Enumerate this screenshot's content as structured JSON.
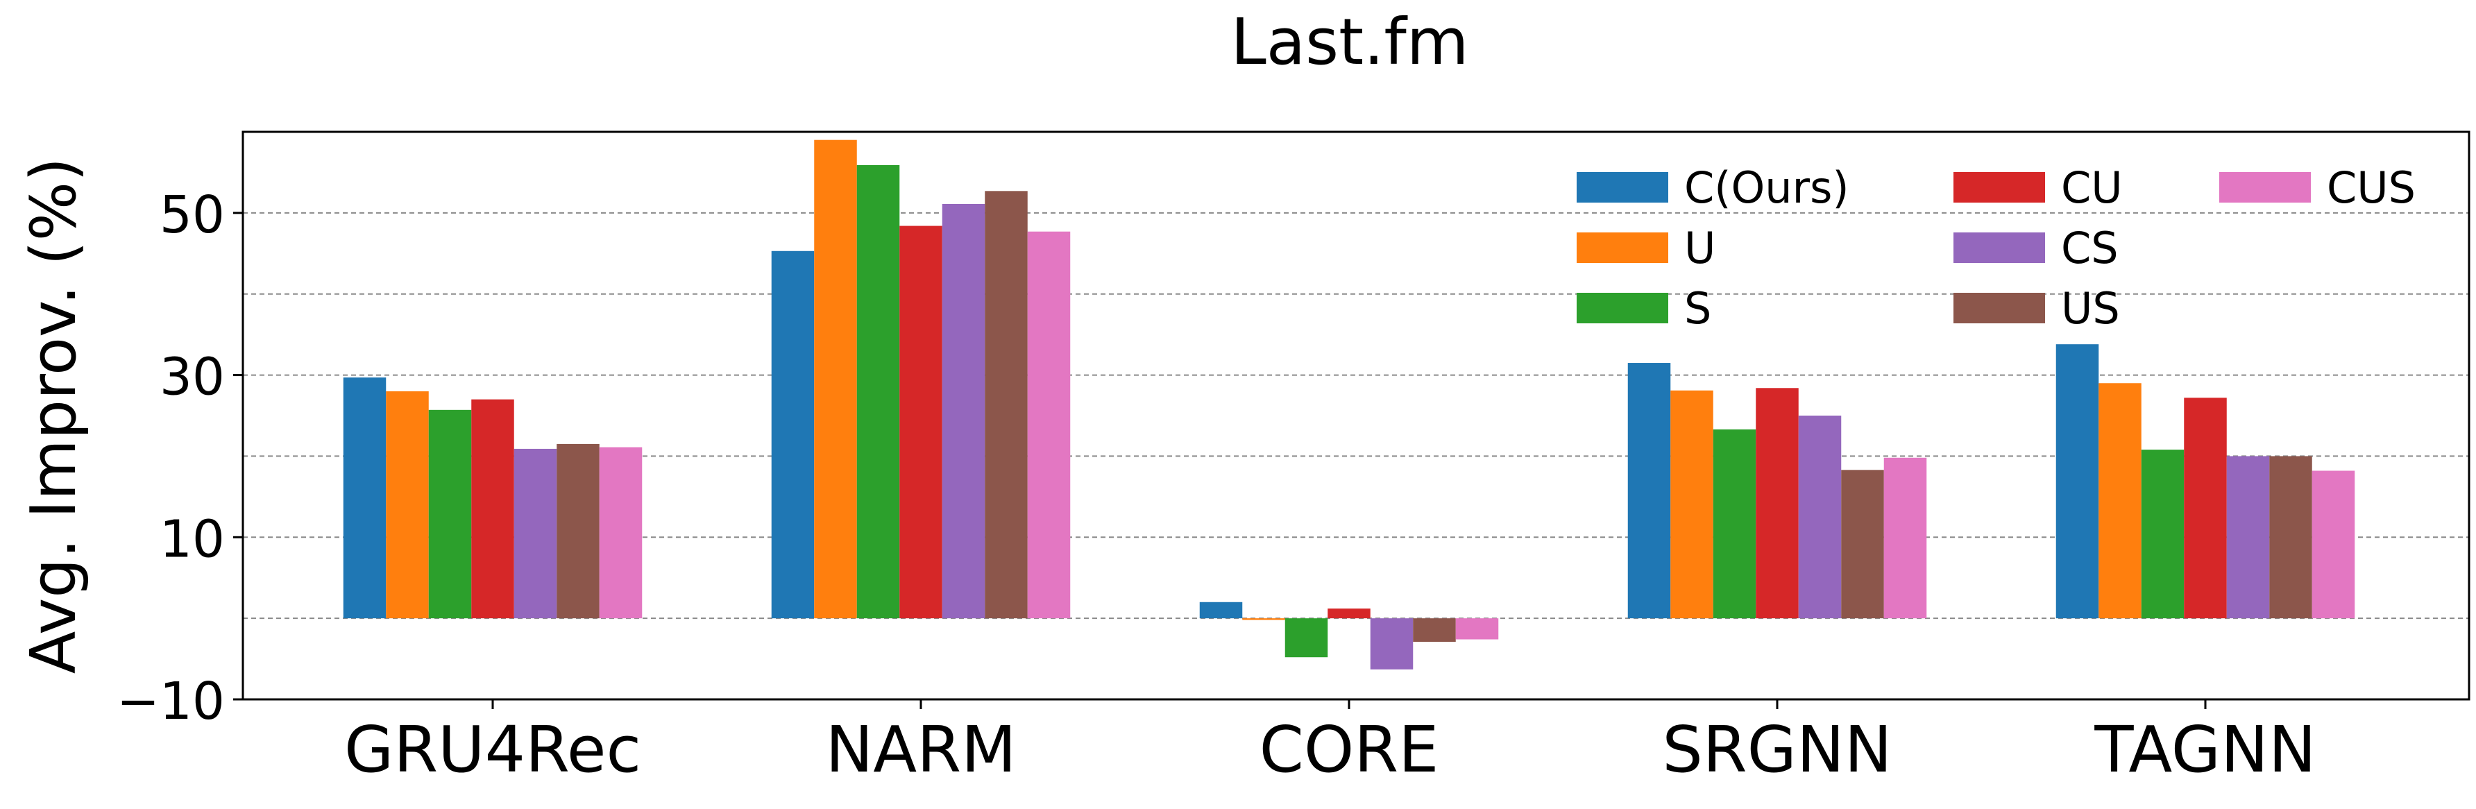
{
  "chart_data": {
    "type": "bar",
    "title": "Last.fm",
    "xlabel": "",
    "ylabel": "Avg. Improv. (%)",
    "categories": [
      "GRU4Rec",
      "NARM",
      "CORE",
      "SRGNN",
      "TAGNN"
    ],
    "ylim": [
      -10,
      60
    ],
    "yticks": [
      -10,
      10,
      30,
      50
    ],
    "ytick_labels": [
      "−10",
      "10",
      "30",
      "50"
    ],
    "grid": {
      "y": true,
      "style": "dashed",
      "lines": [
        0,
        10,
        20,
        30,
        40,
        50
      ]
    },
    "legend": {
      "placement": "top-right",
      "columns": 3
    },
    "series": [
      {
        "name": "C(Ours)",
        "color": "#1f77b4",
        "values": [
          29.7,
          45.3,
          2.0,
          31.5,
          33.8
        ]
      },
      {
        "name": "U",
        "color": "#ff7f0e",
        "values": [
          28.0,
          59.0,
          -0.2,
          28.1,
          29.0
        ]
      },
      {
        "name": "S",
        "color": "#2ca02c",
        "values": [
          25.7,
          55.9,
          -4.8,
          23.3,
          20.8
        ]
      },
      {
        "name": "CU",
        "color": "#d62728",
        "values": [
          27.0,
          48.4,
          1.2,
          28.4,
          27.2
        ]
      },
      {
        "name": "CS",
        "color": "#9467bd",
        "values": [
          20.9,
          51.1,
          -6.3,
          25.0,
          20.0
        ]
      },
      {
        "name": "US",
        "color": "#8c564b",
        "values": [
          21.5,
          52.7,
          -2.9,
          18.3,
          20.0
        ]
      },
      {
        "name": "CUS",
        "color": "#e377c2",
        "values": [
          21.1,
          47.7,
          -2.6,
          19.8,
          18.2
        ]
      }
    ]
  }
}
